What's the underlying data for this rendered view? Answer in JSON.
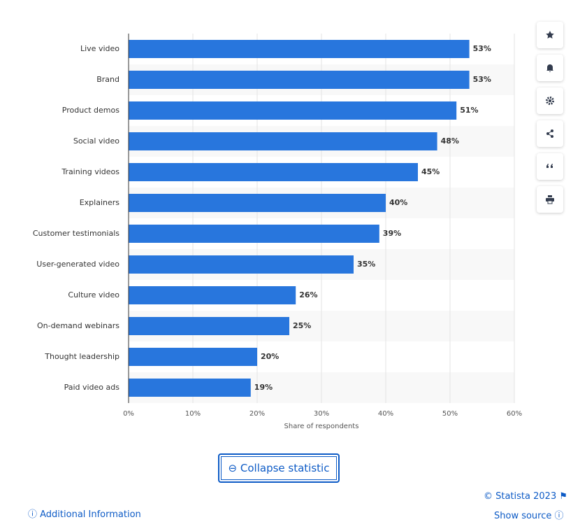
{
  "chart_data": {
    "type": "bar",
    "orientation": "horizontal",
    "x_label": "Share of respondents",
    "categories": [
      "Live video",
      "Brand",
      "Product demos",
      "Social video",
      "Training videos",
      "Explainers",
      "Customer testimonials",
      "User-generated video",
      "Culture video",
      "On-demand webinars",
      "Thought leadership",
      "Paid video ads"
    ],
    "values": [
      53,
      53,
      51,
      48,
      45,
      40,
      39,
      35,
      26,
      25,
      20,
      19
    ],
    "value_labels": [
      "53%",
      "53%",
      "51%",
      "48%",
      "45%",
      "40%",
      "39%",
      "35%",
      "26%",
      "25%",
      "20%",
      "19%"
    ],
    "color": "#2876dd",
    "xlim": [
      0,
      60
    ],
    "xticks": [
      {
        "value": 0,
        "label": "0%"
      },
      {
        "value": 10,
        "label": "10%"
      },
      {
        "value": 20,
        "label": "20%"
      },
      {
        "value": 30,
        "label": "30%"
      },
      {
        "value": 40,
        "label": "40%"
      },
      {
        "value": 50,
        "label": "50%"
      },
      {
        "value": 60,
        "label": "60%"
      }
    ],
    "grid": true
  },
  "ui": {
    "collapse": "Collapse statistic",
    "copyright": "© Statista 2023",
    "additional": "Additional Information",
    "source": "Show source"
  }
}
